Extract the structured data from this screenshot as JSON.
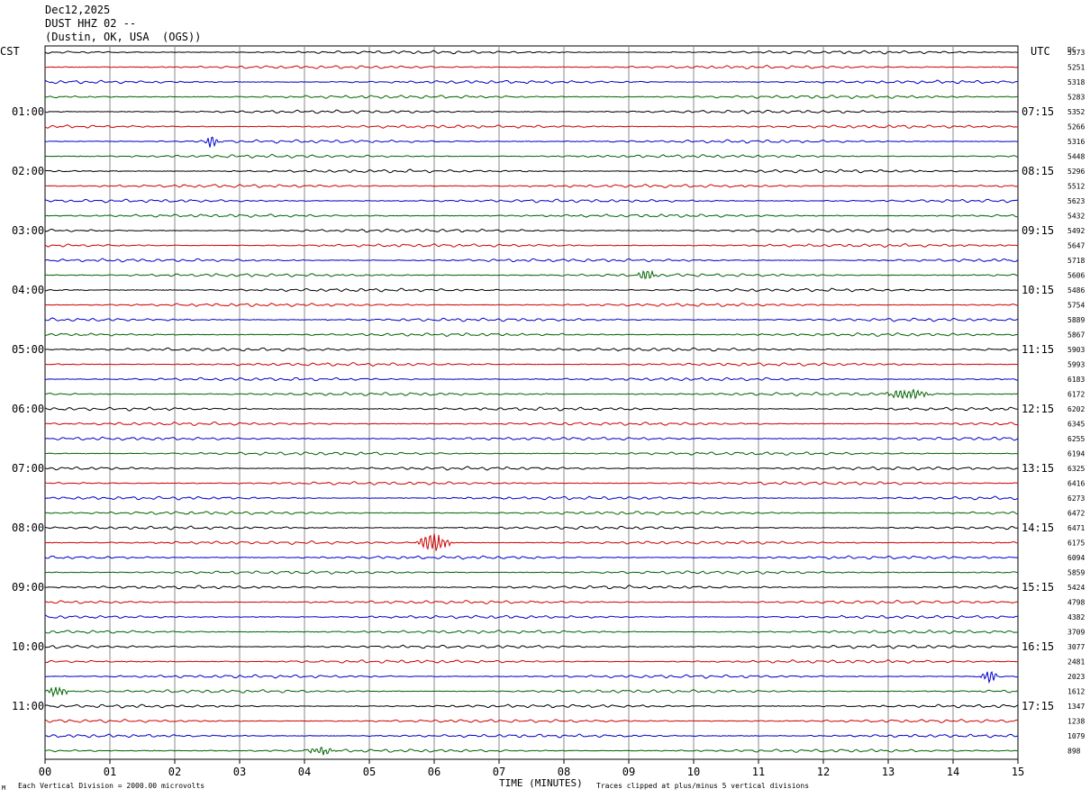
{
  "header": {
    "date": "Dec12,2025",
    "station": "DUST HHZ 02 --",
    "location": "(Dustin, OK, USA  (OGS))"
  },
  "left_axis_label": "CST",
  "right_axis_label": "UTC",
  "dc_label": "DC",
  "footer": {
    "scale_note": "Each Vertical Division = 2000.00 microvolts",
    "xlabel": "TIME (MINUTES)",
    "clip_note": "Traces clipped at plus/minus 5 vertical divisions",
    "corner_mark": "M"
  },
  "colors": {
    "cycle": [
      "#000000",
      "#d00000",
      "#0000cc",
      "#006400"
    ],
    "grid": "#888888"
  },
  "chart_data": {
    "type": "line",
    "title": "DUST HHZ 02 --",
    "xlabel": "TIME (MINUTES)",
    "xlim": [
      0,
      15
    ],
    "x_ticks": [
      "00",
      "01",
      "02",
      "03",
      "04",
      "05",
      "06",
      "07",
      "08",
      "09",
      "10",
      "11",
      "12",
      "13",
      "14",
      "15"
    ],
    "trace_count": 48,
    "left_time_labels": [
      "01:00",
      "02:00",
      "03:00",
      "04:00",
      "05:00",
      "06:00",
      "07:00",
      "08:00",
      "09:00",
      "10:00",
      "11:00"
    ],
    "right_time_labels": [
      "07:15",
      "08:15",
      "09:15",
      "10:15",
      "11:15",
      "12:15",
      "13:15",
      "14:15",
      "15:15",
      "16:15",
      "17:15"
    ],
    "dc_values": [
      "5373",
      "5251",
      "5318",
      "5283",
      "5352",
      "5266",
      "5316",
      "5448",
      "5296",
      "5512",
      "5623",
      "5432",
      "5492",
      "5647",
      "5718",
      "5606",
      "5486",
      "5754",
      "5889",
      "5867",
      "5903",
      "5993",
      "6183",
      "6172",
      "6202",
      "6345",
      "6255",
      "6194",
      "6325",
      "6416",
      "6273",
      "6472",
      "6471",
      "6175",
      "6094",
      "5859",
      "5424",
      "4798",
      "4382",
      "3709",
      "3077",
      "2481",
      "2023",
      "1612",
      "1347",
      "1238",
      "1079",
      "898"
    ],
    "events": [
      {
        "trace": 6,
        "minute_start": 2.45,
        "minute_end": 2.7,
        "amplitude_divisions": 0.55
      },
      {
        "trace": 15,
        "minute_start": 9.1,
        "minute_end": 9.45,
        "amplitude_divisions": 0.5
      },
      {
        "trace": 23,
        "minute_start": 12.9,
        "minute_end": 13.7,
        "amplitude_divisions": 0.45
      },
      {
        "trace": 33,
        "minute_start": 5.7,
        "minute_end": 6.3,
        "amplitude_divisions": 0.9
      },
      {
        "trace": 42,
        "minute_start": 14.4,
        "minute_end": 14.7,
        "amplitude_divisions": 0.6
      },
      {
        "trace": 43,
        "minute_start": 0.0,
        "minute_end": 0.4,
        "amplitude_divisions": 0.5
      },
      {
        "trace": 47,
        "minute_start": 4.0,
        "minute_end": 4.5,
        "amplitude_divisions": 0.4
      }
    ]
  }
}
